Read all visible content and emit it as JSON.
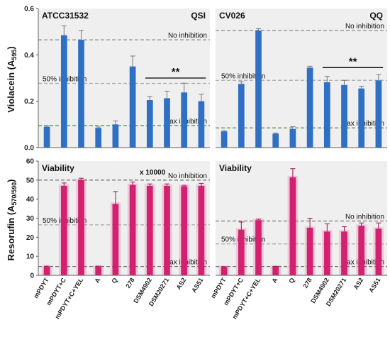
{
  "chart_data": [
    {
      "type": "bar",
      "panel": "top-left",
      "title": "ATCC31532",
      "tag": "QSI",
      "ylabel_main": "Violacein (A",
      "ylabel_sub": "595",
      "ylabel_end": ")",
      "yticks": [
        "0.0",
        "0.2",
        "0.4",
        "0.6"
      ],
      "ylim": [
        0,
        0.6
      ],
      "categories": [
        "mPDYT",
        "mPDYT+C",
        "mPDYT+C+YEL",
        "A",
        "Q",
        "278",
        "DSM4902",
        "DSM20271",
        "AS2",
        "AS51"
      ],
      "values": [
        0.09,
        0.485,
        0.465,
        0.085,
        0.1,
        0.35,
        0.205,
        0.213,
        0.238,
        0.2
      ],
      "errors": [
        0.004,
        0.04,
        0.04,
        0.004,
        0.015,
        0.045,
        0.015,
        0.03,
        0.04,
        0.03
      ],
      "bar_color": "#2f6fc4",
      "refs": [
        {
          "label": "No inhibition",
          "y": 0.465,
          "color": "#888888"
        },
        {
          "label": "50% inhibition",
          "y": 0.277,
          "color": "#aaaaaa"
        },
        {
          "label": "Max inhibition",
          "y": 0.095,
          "color": "#4b8f4b"
        }
      ],
      "significance": {
        "label": "**",
        "from": 6,
        "to": 9,
        "y": 0.3
      }
    },
    {
      "type": "bar",
      "panel": "top-right",
      "title": "CV026",
      "tag": "QQ",
      "ylim": [
        0,
        0.6
      ],
      "categories": [
        "mPDYT",
        "mPDYT+C",
        "mPDYT+C+YEL",
        "A",
        "Q",
        "278",
        "DSM4902",
        "DSM20271",
        "AS2",
        "AS51"
      ],
      "values": [
        0.07,
        0.275,
        0.505,
        0.06,
        0.08,
        0.345,
        0.282,
        0.27,
        0.255,
        0.29
      ],
      "errors": [
        0.003,
        0.01,
        0.008,
        0.003,
        0.01,
        0.006,
        0.025,
        0.02,
        0.01,
        0.025
      ],
      "bar_color": "#2f6fc4",
      "refs": [
        {
          "label": "No inhibition",
          "y": 0.505,
          "color": "#888888"
        },
        {
          "label": "50% inhibition",
          "y": 0.29,
          "color": "#aaaaaa"
        },
        {
          "label": "Max inhibition",
          "y": 0.085,
          "color": "#4b8f4b"
        }
      ],
      "significance": {
        "label": "**",
        "from": 6,
        "to": 9,
        "y": 0.345
      }
    },
    {
      "type": "bar",
      "panel": "bottom-left",
      "title": "Viability",
      "ylabel_main": "Resorufin (A",
      "ylabel_sub": "570/590",
      "ylabel_end": ")",
      "scale_note": "x 10000",
      "yticks": [
        "0",
        "10",
        "20",
        "30",
        "40",
        "50",
        "60"
      ],
      "ylim": [
        0,
        60
      ],
      "categories": [
        "mPDYT",
        "mPDYT+C",
        "mPDYT+C+YEL",
        "A",
        "Q",
        "278",
        "DSM4902",
        "DSM20271",
        "AS2",
        "AS51"
      ],
      "values": [
        4.5,
        47,
        50,
        4.5,
        37.5,
        47.5,
        47,
        47,
        46.8,
        47
      ],
      "errors": [
        0.3,
        1.5,
        1,
        0.3,
        6.5,
        1.5,
        1,
        1,
        0.5,
        1.3
      ],
      "bar_color": "#d4206e",
      "refs": [
        {
          "label": "No inhibition",
          "y": 50,
          "color": "#777777"
        },
        {
          "label": "50% inhibition",
          "y": 26.5,
          "color": "#aaaaaa"
        },
        {
          "label": "Max inhibition",
          "y": 4.6,
          "color": "#777777"
        }
      ]
    },
    {
      "type": "bar",
      "panel": "bottom-right",
      "title": "Viability",
      "ylim": [
        0,
        60
      ],
      "categories": [
        "mPDYT",
        "mPDYT+C",
        "mPDYT+C+YEL",
        "A",
        "Q",
        "278",
        "DSM4902",
        "DSM20271",
        "AS2",
        "AS51"
      ],
      "values": [
        4.3,
        24,
        29,
        4.5,
        51.5,
        25,
        23,
        23,
        26,
        24.5
      ],
      "errors": [
        0.2,
        4,
        0.5,
        0.2,
        4.5,
        5,
        4,
        2.5,
        1.5,
        3
      ],
      "bar_color": "#d4206e",
      "refs": [
        {
          "label": "No inhibition",
          "y": 28.5,
          "color": "#777777"
        },
        {
          "label": "50% inhibition",
          "y": 16.5,
          "color": "#aaaaaa"
        },
        {
          "label": "Max inhibition",
          "y": 4.6,
          "color": "#777777"
        }
      ]
    }
  ]
}
